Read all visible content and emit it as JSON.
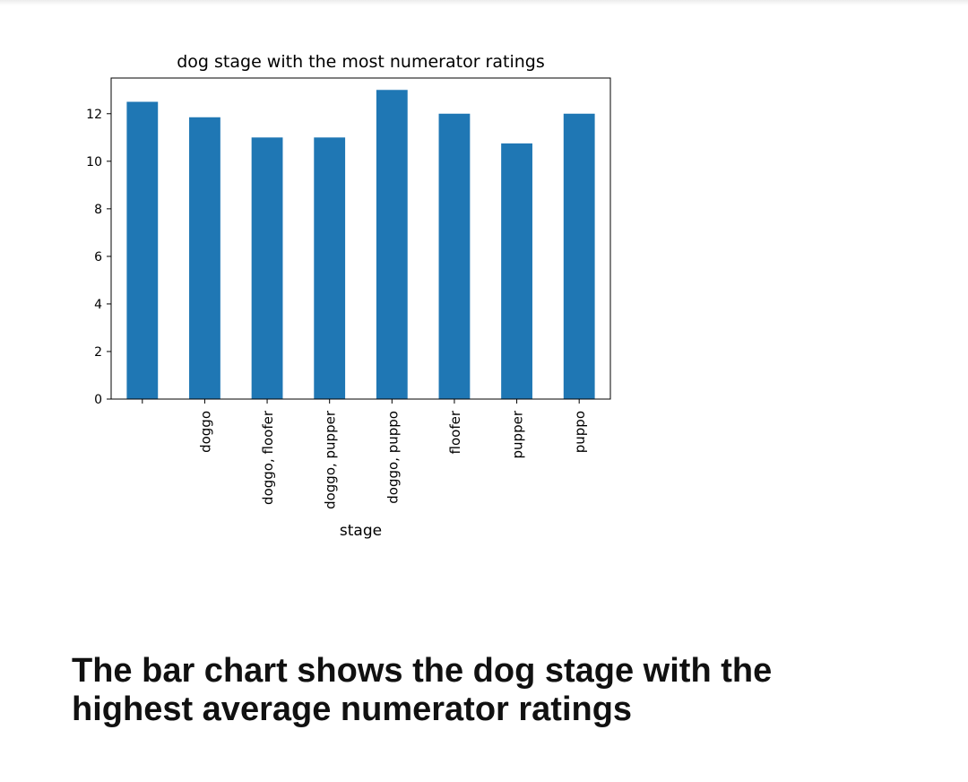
{
  "chart_data": {
    "type": "bar",
    "title": "dog stage with the most numerator ratings",
    "xlabel": "stage",
    "ylabel": "",
    "categories": [
      "",
      "doggo",
      "doggo, floofer",
      "doggo, pupper",
      "doggo, puppo",
      "floofer",
      "pupper",
      "puppo"
    ],
    "values": [
      12.5,
      11.85,
      11.0,
      11.0,
      13.0,
      12.0,
      10.75,
      12.0
    ],
    "yticks": [
      0,
      2,
      4,
      6,
      8,
      10,
      12
    ],
    "ylim": [
      0,
      13.5
    ],
    "bar_color": "#1f77b4",
    "grid": false,
    "legend": "none"
  },
  "caption": "The bar chart shows the dog stage with the highest average numerator ratings"
}
